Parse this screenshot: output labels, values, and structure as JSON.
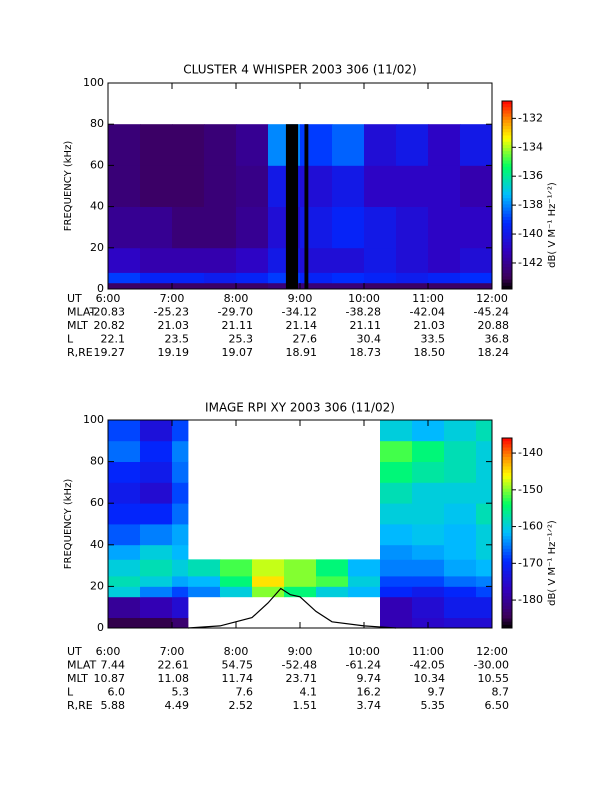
{
  "chart_data": [
    {
      "type": "heatmap",
      "title": "CLUSTER 4 WHISPER 2003 306 (11/02)",
      "ylabel": "FREQUENCY (kHz)",
      "ylim": [
        0,
        100
      ],
      "yticks": [
        0,
        20,
        40,
        60,
        80,
        100
      ],
      "xlim": [
        6,
        12
      ],
      "xticks": [
        {
          "value": 6,
          "label": "6:00"
        },
        {
          "value": 7,
          "label": "7:00"
        },
        {
          "value": 8,
          "label": "8:00"
        },
        {
          "value": 9,
          "label": "9:00"
        },
        {
          "value": 10,
          "label": "10:00"
        },
        {
          "value": 11,
          "label": "11:00"
        },
        {
          "value": 12,
          "label": "12:00"
        }
      ],
      "time_bins": [
        6,
        6.5,
        7,
        7.5,
        8,
        8.5,
        9,
        9.5,
        10,
        10.5,
        11,
        11.5,
        12
      ],
      "freq_bins": [
        0,
        3,
        8,
        20,
        40,
        60,
        80
      ],
      "values": [
        [
          -142.8,
          -142.8,
          -142.8,
          -142.8,
          -142.8,
          -142.5,
          -142.5,
          -142.5,
          -142.8,
          -142.8,
          -142.8,
          -142.8
        ],
        [
          -139,
          -139.5,
          -139.5,
          -139.8,
          -139.5,
          -139,
          -139.5,
          -139.2,
          -139.5,
          -139.8,
          -139.5,
          -139.2
        ],
        [
          -141,
          -141.5,
          -141.5,
          -141.5,
          -141,
          -140,
          -140.5,
          -140.5,
          -140,
          -140.5,
          -141,
          -140.5
        ],
        [
          -142,
          -142,
          -142.5,
          -142.5,
          -142,
          -140.5,
          -140,
          -139.5,
          -140,
          -140.5,
          -141,
          -141
        ],
        [
          -142.5,
          -142.8,
          -142.8,
          -142.5,
          -142.2,
          -140,
          -140.5,
          -140,
          -141,
          -141,
          -141,
          -141.5
        ],
        [
          -142.5,
          -142.8,
          -142.8,
          -142.5,
          -142,
          -138,
          -139,
          -138.5,
          -140.5,
          -140,
          -141,
          -140
        ]
      ],
      "gaps": [
        [
          8.78,
          8.97
        ],
        [
          9.07,
          9.13
        ]
      ],
      "colorbar": {
        "label": "dB( V M⁻¹ Hz⁻¹ᐟ²)",
        "lim": [
          -143.8,
          -130.8
        ],
        "ticks": [
          -132,
          -134,
          -136,
          -138,
          -140,
          -142
        ]
      },
      "ephemeris": {
        "labels": [
          "UT",
          "MLAT",
          "MLT",
          "L",
          "R,RE"
        ],
        "rows": [
          [
            "-20.83",
            "-25.23",
            "-29.70",
            "-34.12",
            "-38.28",
            "-42.04",
            "-45.24"
          ],
          [
            "20.82",
            "21.03",
            "21.11",
            "21.14",
            "21.11",
            "21.03",
            "20.88"
          ],
          [
            "22.1",
            "23.5",
            "25.3",
            "27.6",
            "30.4",
            "33.5",
            "36.8"
          ],
          [
            "19.27",
            "19.19",
            "19.07",
            "18.91",
            "18.73",
            "18.50",
            "18.24"
          ]
        ]
      }
    },
    {
      "type": "heatmap",
      "title": "IMAGE RPI XY 2003 306 (11/02)",
      "ylabel": "FREQUENCY (kHz)",
      "ylim": [
        0,
        100
      ],
      "yticks": [
        0,
        20,
        40,
        60,
        80,
        100
      ],
      "xlim": [
        6,
        12
      ],
      "xticks": [
        {
          "value": 6,
          "label": "6:00"
        },
        {
          "value": 7,
          "label": "7:00"
        },
        {
          "value": 8,
          "label": "8:00"
        },
        {
          "value": 9,
          "label": "9:00"
        },
        {
          "value": 10,
          "label": "10:00"
        },
        {
          "value": 11,
          "label": "11:00"
        },
        {
          "value": 12,
          "label": "12:00"
        }
      ],
      "time_bins": [
        6,
        6.5,
        7,
        7.25,
        7.75,
        8.25,
        8.75,
        9.25,
        9.75,
        10.25,
        10.75,
        11.25,
        11.75,
        12
      ],
      "freq_bins": [
        0,
        5,
        15,
        20,
        25,
        33,
        40,
        50,
        60,
        70,
        80,
        90,
        100
      ],
      "values": [
        [
          -185,
          -185,
          -183,
          null,
          null,
          null,
          null,
          null,
          null,
          -178,
          -176,
          -175,
          -175
        ],
        [
          -180,
          -178,
          -175,
          null,
          null,
          null,
          null,
          null,
          null,
          -178,
          -175,
          -172,
          -172
        ],
        [
          -160,
          -165,
          -168,
          -165,
          -160,
          -150,
          -155,
          -160,
          -162,
          -170,
          -172,
          -170,
          -168
        ],
        [
          -158,
          -160,
          -163,
          -162,
          -155,
          -145,
          -150,
          -152,
          -160,
          -168,
          -168,
          -166,
          -165
        ],
        [
          -160,
          -158,
          -160,
          -158,
          -152,
          -148,
          -150,
          -155,
          -162,
          -165,
          -165,
          -163,
          -162
        ],
        [
          -163,
          -160,
          -162,
          null,
          null,
          null,
          null,
          null,
          null,
          -164,
          -163,
          -162,
          -160
        ],
        [
          -167,
          -165,
          -163,
          null,
          null,
          null,
          null,
          null,
          null,
          -162,
          -161,
          -162,
          -160
        ],
        [
          -170,
          -170,
          -166,
          null,
          null,
          null,
          null,
          null,
          null,
          -160,
          -160,
          -161,
          -158
        ],
        [
          -172,
          -175,
          -168,
          null,
          null,
          null,
          null,
          null,
          null,
          -158,
          -160,
          -160,
          -160
        ],
        [
          -170,
          -172,
          -166,
          null,
          null,
          null,
          null,
          null,
          null,
          -155,
          -157,
          -158,
          -160
        ],
        [
          -166,
          -170,
          -165,
          null,
          null,
          null,
          null,
          null,
          null,
          -152,
          -155,
          -158,
          -160
        ],
        [
          -168,
          -174,
          -168,
          null,
          null,
          null,
          null,
          null,
          null,
          -160,
          -162,
          -160,
          -158
        ]
      ],
      "curve": {
        "x": [
          7.25,
          7.75,
          8.25,
          8.5,
          8.7,
          8.85,
          9.0,
          9.25,
          9.5,
          10.0,
          10.5
        ],
        "y": [
          0,
          1,
          5,
          12,
          19,
          16,
          15,
          8,
          3,
          1,
          0
        ]
      },
      "colorbar": {
        "label": "dB( V M⁻¹ Hz⁻¹ᐟ²)",
        "lim": [
          -187.6,
          -135.9
        ],
        "ticks": [
          -140,
          -150,
          -160,
          -170,
          -180
        ]
      },
      "ephemeris": {
        "labels": [
          "UT",
          "MLAT",
          "MLT",
          "L",
          "R,RE"
        ],
        "rows": [
          [
            "7.44",
            "22.61",
            "54.75",
            "-52.48",
            "-61.24",
            "-42.05",
            "-30.00"
          ],
          [
            "10.87",
            "11.08",
            "11.74",
            "23.71",
            "9.74",
            "10.34",
            "10.55"
          ],
          [
            "6.0",
            "5.3",
            "7.6",
            "4.1",
            "16.2",
            "9.7",
            "8.7"
          ],
          [
            "5.88",
            "4.49",
            "2.52",
            "1.51",
            "3.74",
            "5.35",
            "6.50"
          ]
        ]
      }
    }
  ]
}
